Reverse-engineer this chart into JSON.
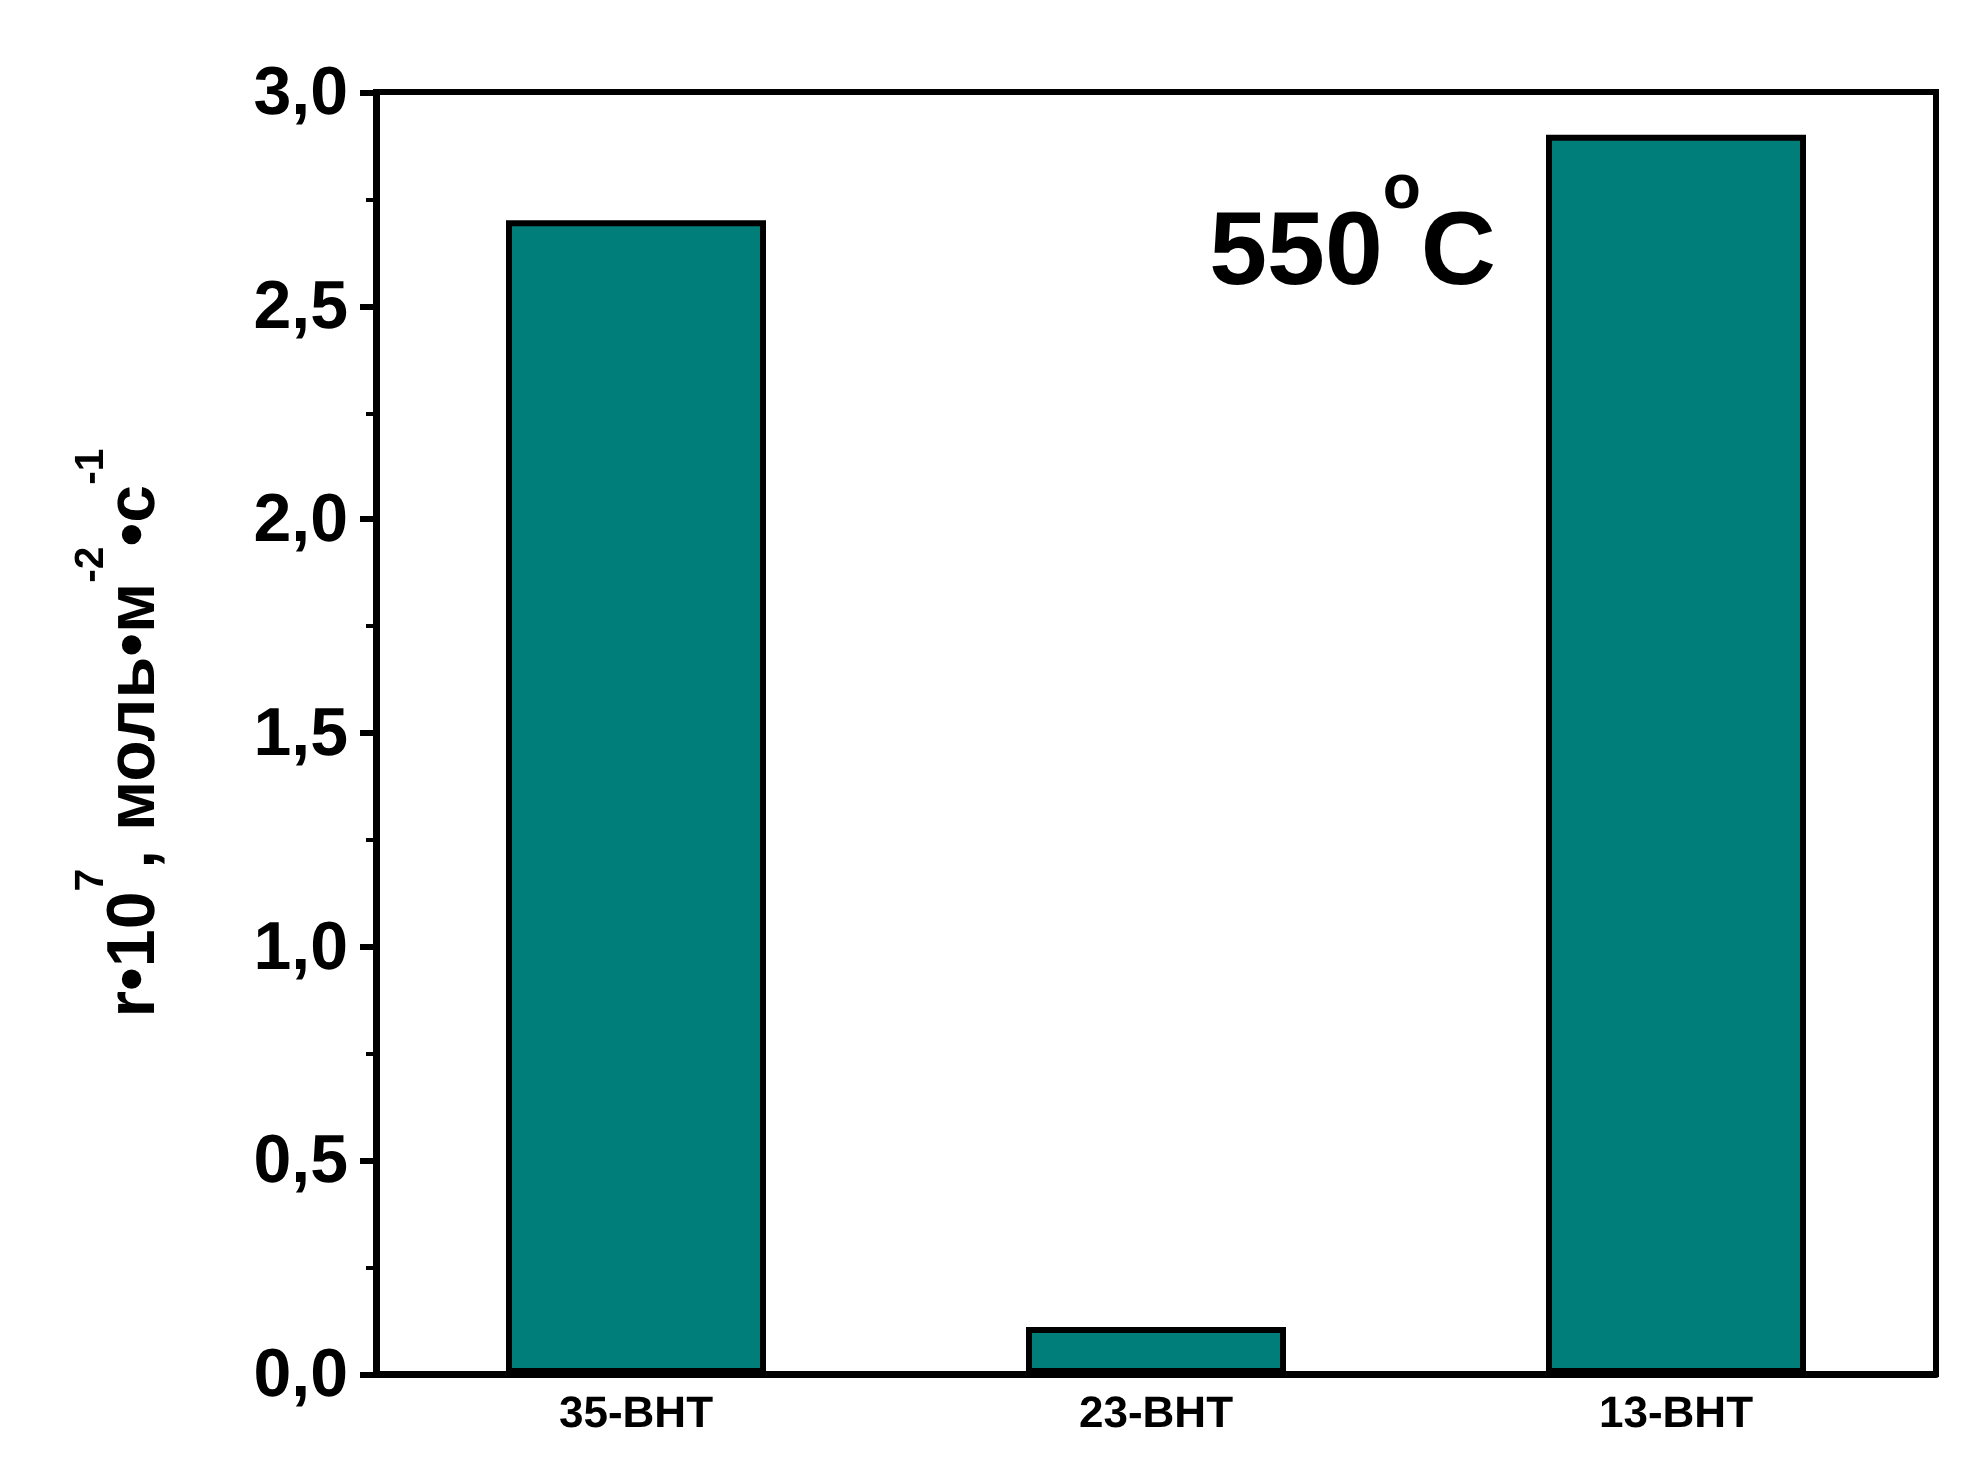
{
  "chart_data": {
    "type": "bar",
    "ylabel": "r•10$^{7}$, моль•м$^{-2}$•с$^{-1}$",
    "annotations": [
      "550$^{o}$C"
    ],
    "categories": [
      "35-ВНТ",
      "23-ВНТ",
      "13-ВНТ"
    ],
    "values": [
      2.7,
      0.11,
      2.9
    ],
    "color": "#007f7a",
    "ylim": [
      0,
      3
    ],
    "yticks": [
      {
        "value": 0,
        "label": "0,0"
      },
      {
        "value": 0.5,
        "label": "0,5"
      },
      {
        "value": 1,
        "label": "1,0"
      },
      {
        "value": 1.5,
        "label": "1,5"
      },
      {
        "value": 2,
        "label": "2,0"
      },
      {
        "value": 2.5,
        "label": "2,5"
      },
      {
        "value": 3,
        "label": "3,0"
      }
    ],
    "grid": false
  }
}
